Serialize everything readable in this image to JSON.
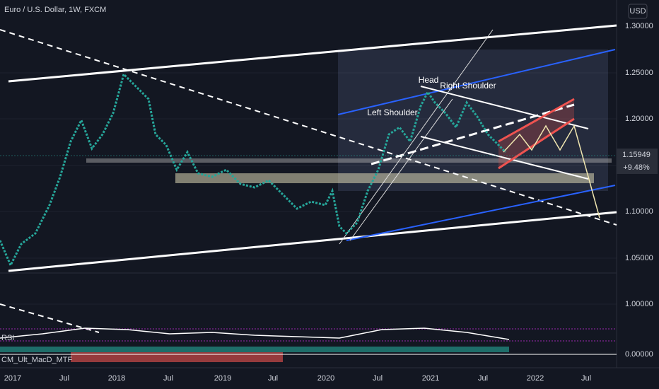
{
  "header": {
    "title": "Euro / U.S. Dollar, 1W, FXCM"
  },
  "price_axis": {
    "currency": "USD",
    "labels": [
      "1.30000",
      "1.25000",
      "1.20000",
      "1.10000",
      "1.05000",
      "1.00000",
      "0.00000"
    ]
  },
  "time_axis": {
    "labels": [
      "2017",
      "Jul",
      "2018",
      "Jul",
      "2019",
      "Jul",
      "2020",
      "Jul",
      "2021",
      "Jul",
      "2022",
      "Jul"
    ]
  },
  "price_tag": {
    "price": "1.15949",
    "change": "+9.48%"
  },
  "annotations": [
    "Head",
    "Left Shoulder",
    "Right Shoulder"
  ],
  "indicators": [
    "RSI",
    "CM_Ult_MacD_MTF"
  ]
}
